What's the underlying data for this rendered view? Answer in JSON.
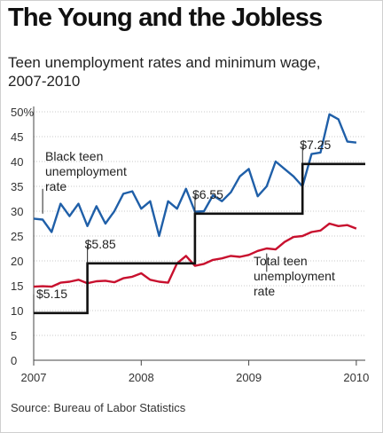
{
  "title": "The Young and the Jobless",
  "subtitle": "Teen unemployment rates and minimum wage, 2007-2010",
  "source": "Source: Bureau of Labor Statistics",
  "colors": {
    "black_teen": "#1f5fa8",
    "total_teen": "#c8102e",
    "min_wage": "#111111",
    "grid": "#c8c8c8"
  },
  "chart_data": {
    "type": "line",
    "x_ticks": [
      "2007",
      "2008",
      "2009",
      "2010"
    ],
    "y_ticks": [
      "50%",
      "45",
      "40",
      "35",
      "30",
      "25",
      "20",
      "15",
      "10",
      "5",
      "0"
    ],
    "ylim": [
      0,
      50
    ],
    "xlim": [
      "2007-01",
      "2010-02"
    ],
    "grid": true,
    "series": [
      {
        "name": "Black teen unemployment rate",
        "label_lines": [
          "Black teen",
          "unemployment",
          "rate"
        ],
        "x": [
          "2007-01",
          "2007-02",
          "2007-03",
          "2007-04",
          "2007-05",
          "2007-06",
          "2007-07",
          "2007-08",
          "2007-09",
          "2007-10",
          "2007-11",
          "2007-12",
          "2008-01",
          "2008-02",
          "2008-03",
          "2008-04",
          "2008-05",
          "2008-06",
          "2008-07",
          "2008-08",
          "2008-09",
          "2008-10",
          "2008-11",
          "2008-12",
          "2009-01",
          "2009-02",
          "2009-03",
          "2009-04",
          "2009-05",
          "2009-06",
          "2009-07",
          "2009-08",
          "2009-09",
          "2009-10",
          "2009-11",
          "2009-12",
          "2010-01"
        ],
        "values": [
          28.5,
          28.3,
          25.8,
          31.5,
          29.0,
          31.5,
          27.0,
          31.0,
          27.5,
          30.0,
          33.5,
          34.0,
          30.5,
          32.0,
          25.0,
          32.0,
          30.5,
          34.5,
          29.9,
          30.0,
          33.2,
          32.0,
          33.8,
          37.0,
          38.5,
          33.0,
          35.0,
          40.0,
          38.5,
          37.0,
          35.0,
          41.5,
          41.8,
          49.5,
          48.5,
          44.0,
          43.8
        ]
      },
      {
        "name": "Total teen unemployment rate",
        "label_lines": [
          "Total teen",
          "unemployment",
          "rate"
        ],
        "x": [
          "2007-01",
          "2007-02",
          "2007-03",
          "2007-04",
          "2007-05",
          "2007-06",
          "2007-07",
          "2007-08",
          "2007-09",
          "2007-10",
          "2007-11",
          "2007-12",
          "2008-01",
          "2008-02",
          "2008-03",
          "2008-04",
          "2008-05",
          "2008-06",
          "2008-07",
          "2008-08",
          "2008-09",
          "2008-10",
          "2008-11",
          "2008-12",
          "2009-01",
          "2009-02",
          "2009-03",
          "2009-04",
          "2009-05",
          "2009-06",
          "2009-07",
          "2009-08",
          "2009-09",
          "2009-10",
          "2009-11",
          "2009-12",
          "2010-01"
        ],
        "values": [
          14.8,
          14.9,
          14.8,
          15.6,
          15.8,
          16.2,
          15.5,
          15.9,
          16.0,
          15.7,
          16.5,
          16.8,
          17.5,
          16.2,
          15.8,
          15.6,
          19.5,
          21.0,
          19.0,
          19.4,
          20.2,
          20.5,
          21.0,
          20.8,
          21.2,
          22.0,
          22.5,
          22.3,
          23.8,
          24.8,
          25.0,
          25.8,
          26.1,
          27.5,
          27.0,
          27.2,
          26.5
        ]
      },
      {
        "name": "Minimum wage",
        "x": [
          "2007-01",
          "2007-07",
          "2007-07",
          "2008-07",
          "2008-07",
          "2009-07",
          "2009-07",
          "2010-02"
        ],
        "values": [
          9.5,
          9.5,
          19.5,
          19.5,
          29.5,
          29.5,
          39.5,
          39.5
        ],
        "labels": [
          {
            "text": "$5.15",
            "x": "2007-01"
          },
          {
            "text": "$5.85",
            "x": "2007-07"
          },
          {
            "text": "$6.55",
            "x": "2008-07"
          },
          {
            "text": "$7.25",
            "x": "2009-07"
          }
        ]
      }
    ]
  }
}
